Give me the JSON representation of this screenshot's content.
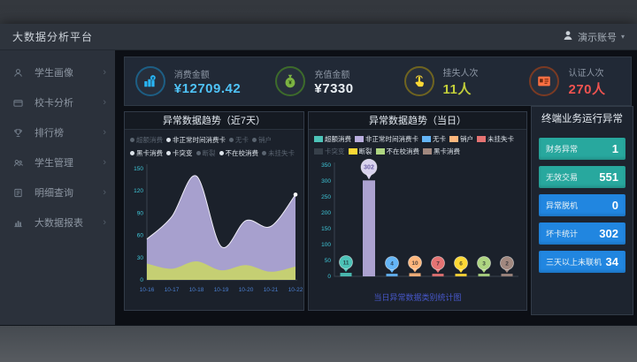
{
  "app": {
    "title": "大数据分析平台"
  },
  "header": {
    "user_name": "演示账号"
  },
  "sidebar": {
    "items": [
      {
        "label": "学生画像",
        "icon": "student-icon"
      },
      {
        "label": "校卡分析",
        "icon": "card-icon"
      },
      {
        "label": "排行榜",
        "icon": "trophy-icon"
      },
      {
        "label": "学生管理",
        "icon": "manage-icon"
      },
      {
        "label": "明细查询",
        "icon": "query-icon"
      },
      {
        "label": "大数据报表",
        "icon": "report-icon"
      }
    ]
  },
  "kpis": [
    {
      "label": "消费金额",
      "value": "¥12709.42",
      "value_color": "#4fc3f7",
      "icon": "coins-icon",
      "icon_color": "#29b6f6",
      "ring_color": "#1d5e84"
    },
    {
      "label": "充值金额",
      "value": "¥7330",
      "value_color": "#e9eef3",
      "icon": "moneybag-icon",
      "icon_color": "#7cb342",
      "ring_color": "#3d6b2b"
    },
    {
      "label": "挂失人次",
      "value": "11人",
      "value_color": "#c3cf3a",
      "icon": "hand-icon",
      "icon_color": "#fdd835",
      "ring_color": "#6f6420"
    },
    {
      "label": "认证人次",
      "value": "270人",
      "value_color": "#ef5350",
      "icon": "idcard-icon",
      "icon_color": "#ff7043",
      "ring_color": "#7a3a23"
    }
  ],
  "left_chart": {
    "title": "异常数据趋势（近7天）",
    "legend": [
      {
        "label": "超额消费",
        "active": false
      },
      {
        "label": "非正常时间消费卡",
        "active": true
      },
      {
        "label": "无卡",
        "active": false
      },
      {
        "label": "销户",
        "active": false
      },
      {
        "label": "黑卡消费",
        "active": true
      },
      {
        "label": "卡突变",
        "active": true
      },
      {
        "label": "断裂",
        "active": false
      },
      {
        "label": "不在校消费",
        "active": true
      },
      {
        "label": "未挂失卡",
        "active": false
      }
    ],
    "chart_data": {
      "type": "area",
      "x": [
        "10-16",
        "10-17",
        "10-18",
        "10-19",
        "10-20",
        "10-21",
        "10-22"
      ],
      "series": [
        {
          "name": "非正常时间消费卡",
          "color": "#b3abdc",
          "values": [
            55,
            85,
            140,
            45,
            80,
            72,
            115
          ]
        },
        {
          "name": "不在校消费",
          "color": "#c6d26e",
          "values": [
            22,
            15,
            25,
            13,
            20,
            11,
            18
          ]
        }
      ],
      "ylim": [
        0,
        150
      ],
      "yticks": [
        0,
        30,
        60,
        90,
        120,
        150
      ]
    }
  },
  "right_chart": {
    "title": "异常数据趋势（当日）",
    "caption": "当日异常数据类别统计图",
    "legend": [
      {
        "label": "超额消费",
        "color": "#4dc3b8",
        "active": true
      },
      {
        "label": "非正常时间消费卡",
        "color": "#b9aede",
        "active": true
      },
      {
        "label": "无卡",
        "color": "#64b5f6",
        "active": true
      },
      {
        "label": "销户",
        "color": "#ffb77d",
        "active": true
      },
      {
        "label": "未挂失卡",
        "color": "#e57373",
        "active": true
      },
      {
        "label": "卡突变",
        "color": "#7c8791",
        "active": false
      },
      {
        "label": "断裂",
        "color": "#fdd835",
        "active": true
      },
      {
        "label": "不在校消费",
        "color": "#aed581",
        "active": true
      },
      {
        "label": "黑卡消费",
        "color": "#a1887f",
        "active": true
      }
    ],
    "chart_data": {
      "type": "bar",
      "categories": [
        "超额消费",
        "非正常时间消费卡",
        "无卡",
        "销户",
        "未挂失卡",
        "断裂",
        "不在校消费",
        "黑卡消费"
      ],
      "values": [
        11,
        302,
        4,
        10,
        7,
        6,
        3,
        2
      ],
      "colors": [
        "#4dc3b8",
        "#b9aede",
        "#64b5f6",
        "#ffb77d",
        "#e57373",
        "#fdd835",
        "#aed581",
        "#a1887f"
      ],
      "ylim": [
        0,
        350
      ],
      "yticks": [
        0,
        50,
        100,
        150,
        200,
        250,
        300,
        350
      ]
    }
  },
  "terminal_panel": {
    "title": "终端业务运行异常",
    "items": [
      {
        "label": "财务异常",
        "value": "1",
        "color": "#28a89e"
      },
      {
        "label": "无效交易",
        "value": "551",
        "color": "#28a89e"
      },
      {
        "label": "异常脱机",
        "value": "0",
        "color": "#2186e0"
      },
      {
        "label": "坏卡统计",
        "value": "302",
        "color": "#2186e0"
      },
      {
        "label": "三天以上未联机",
        "value": "34",
        "color": "#2186e0"
      }
    ]
  }
}
